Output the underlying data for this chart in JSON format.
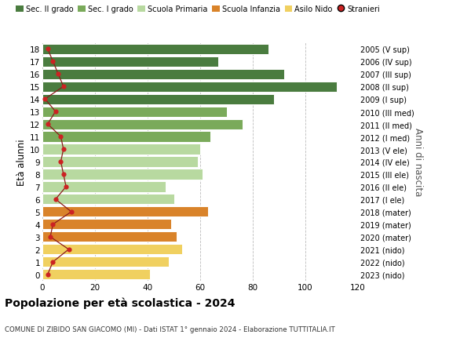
{
  "ages": [
    18,
    17,
    16,
    15,
    14,
    13,
    12,
    11,
    10,
    9,
    8,
    7,
    6,
    5,
    4,
    3,
    2,
    1,
    0
  ],
  "right_labels": [
    "2005 (V sup)",
    "2006 (IV sup)",
    "2007 (III sup)",
    "2008 (II sup)",
    "2009 (I sup)",
    "2010 (III med)",
    "2011 (II med)",
    "2012 (I med)",
    "2013 (V ele)",
    "2014 (IV ele)",
    "2015 (III ele)",
    "2016 (II ele)",
    "2017 (I ele)",
    "2018 (mater)",
    "2019 (mater)",
    "2020 (mater)",
    "2021 (nido)",
    "2022 (nido)",
    "2023 (nido)"
  ],
  "bar_values": [
    86,
    67,
    92,
    112,
    88,
    70,
    76,
    64,
    60,
    59,
    61,
    47,
    50,
    63,
    49,
    51,
    53,
    48,
    41
  ],
  "bar_colors": [
    "#4a7c3f",
    "#4a7c3f",
    "#4a7c3f",
    "#4a7c3f",
    "#4a7c3f",
    "#7aaa5a",
    "#7aaa5a",
    "#7aaa5a",
    "#b8d9a0",
    "#b8d9a0",
    "#b8d9a0",
    "#b8d9a0",
    "#b8d9a0",
    "#d9832a",
    "#d9832a",
    "#d9832a",
    "#f0d060",
    "#f0d060",
    "#f0d060"
  ],
  "stranieri_values": [
    2,
    4,
    6,
    8,
    1,
    5,
    2,
    7,
    8,
    7,
    8,
    9,
    5,
    11,
    4,
    3,
    10,
    4,
    2
  ],
  "legend_labels": [
    "Sec. II grado",
    "Sec. I grado",
    "Scuola Primaria",
    "Scuola Infanzia",
    "Asilo Nido",
    "Stranieri"
  ],
  "legend_colors": [
    "#4a7c3f",
    "#7aaa5a",
    "#b8d9a0",
    "#d9832a",
    "#f0d060",
    "#cc2222"
  ],
  "title": "Popolazione per età scolastica - 2024",
  "subtitle": "COMUNE DI ZIBIDO SAN GIACOMO (MI) - Dati ISTAT 1° gennaio 2024 - Elaborazione TUTTITALIA.IT",
  "ylabel_left": "Età alunni",
  "ylabel_right": "Anni di nascita",
  "xlim": [
    0,
    120
  ],
  "xticks": [
    0,
    20,
    40,
    60,
    80,
    100,
    120
  ],
  "bg_color": "#ffffff",
  "grid_color": "#bbbbbb"
}
